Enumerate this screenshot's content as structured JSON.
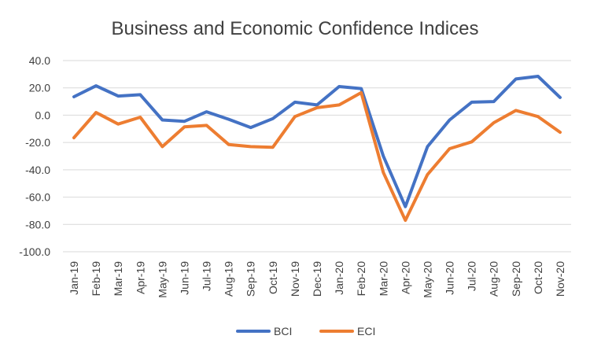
{
  "chart_data": {
    "type": "line",
    "title": "Business and Economic Confidence Indices",
    "xlabel": "",
    "ylabel": "",
    "categories": [
      "Jan-19",
      "Feb-19",
      "Mar-19",
      "Apr-19",
      "May-19",
      "Jun-19",
      "Jul-19",
      "Aug-19",
      "Sep-19",
      "Oct-19",
      "Nov-19",
      "Dec-19",
      "Jan-20",
      "Feb-20",
      "Mar-20",
      "Apr-20",
      "May-20",
      "Jun-20",
      "Jul-20",
      "Aug-20",
      "Sep-20",
      "Oct-20",
      "Nov-20"
    ],
    "y_ticks": [
      "40.0",
      "20.0",
      "0.0",
      "-20.0",
      "-40.0",
      "-60.0",
      "-80.0",
      "-100.0"
    ],
    "ylim": [
      -100,
      40
    ],
    "grid": true,
    "legend_position": "bottom",
    "series": [
      {
        "name": "BCI",
        "color": "#4472C4",
        "values": [
          13.5,
          21.5,
          14,
          15,
          -3.5,
          -4.5,
          2.5,
          -3,
          -9,
          -2.5,
          9.5,
          7.5,
          21,
          19.5,
          -30,
          -67,
          -23,
          -3.5,
          9.5,
          10,
          26.5,
          28.5,
          13
        ]
      },
      {
        "name": "ECI",
        "color": "#ED7D31",
        "values": [
          -16.5,
          2,
          -6.5,
          -1.5,
          -23,
          -8.5,
          -7.5,
          -21.5,
          -23,
          -23.5,
          -1,
          5.5,
          7.5,
          16.5,
          -42,
          -77,
          -43.5,
          -24.5,
          -19.5,
          -5.5,
          3.5,
          -1,
          -12.5
        ]
      }
    ]
  }
}
